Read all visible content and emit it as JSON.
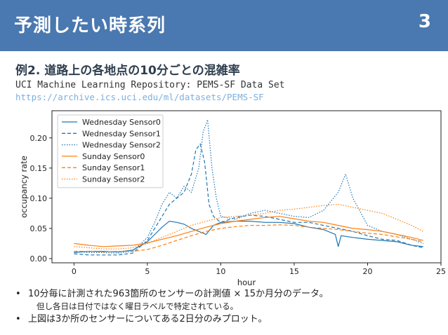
{
  "header": {
    "title": "予測したい時系列",
    "page_number": "3"
  },
  "example": {
    "title": "例2. 道路上の各地点の10分ごとの混雑率"
  },
  "source": {
    "text": "UCI Machine Learning Repository: PEMS-SF Data Set",
    "url": "https://archive.ics.uci.edu/ml/datasets/PEMS-SF"
  },
  "chart_data": {
    "type": "line",
    "xlabel": "hour",
    "ylabel": "occupancy rate",
    "xlim": [
      -1.5,
      25
    ],
    "ylim": [
      -0.007,
      0.245
    ],
    "xticks": [
      0,
      5,
      10,
      15,
      20,
      25
    ],
    "yticks": [
      0.0,
      0.05,
      0.1,
      0.15,
      0.2
    ],
    "xtick_labels": [
      "0",
      "5",
      "10",
      "15",
      "20",
      "25"
    ],
    "ytick_labels": [
      "0.00",
      "0.05",
      "0.10",
      "0.15",
      "0.20"
    ],
    "legend": "top-left",
    "series": [
      {
        "name": "Wednesday Sensor0",
        "color": "#1f77b4",
        "dash": "solid",
        "x": [
          0,
          1,
          2,
          3,
          4,
          5,
          5.5,
          6,
          6.5,
          7,
          7.5,
          8,
          8.5,
          9,
          9.5,
          10,
          11,
          12,
          13,
          14,
          15,
          16,
          17,
          17.8,
          18,
          18.2,
          19,
          20,
          21,
          22,
          23,
          23.8
        ],
        "y": [
          0.01,
          0.012,
          0.012,
          0.011,
          0.014,
          0.028,
          0.04,
          0.052,
          0.062,
          0.06,
          0.057,
          0.05,
          0.045,
          0.04,
          0.055,
          0.06,
          0.062,
          0.062,
          0.06,
          0.06,
          0.058,
          0.052,
          0.048,
          0.04,
          0.02,
          0.038,
          0.035,
          0.032,
          0.03,
          0.028,
          0.022,
          0.02
        ]
      },
      {
        "name": "Wednesday Sensor1",
        "color": "#1f77b4",
        "dash": "dashed",
        "x": [
          0,
          1,
          2,
          3,
          4,
          5,
          5.5,
          6,
          6.5,
          7,
          7.5,
          8,
          8.3,
          8.6,
          8.9,
          9.2,
          9.5,
          10,
          11,
          12,
          13,
          14,
          15,
          16,
          17,
          18,
          19,
          20,
          21,
          22,
          23,
          23.8
        ],
        "y": [
          0.008,
          0.006,
          0.006,
          0.006,
          0.009,
          0.03,
          0.05,
          0.07,
          0.09,
          0.1,
          0.11,
          0.14,
          0.18,
          0.19,
          0.16,
          0.09,
          0.07,
          0.06,
          0.068,
          0.072,
          0.07,
          0.065,
          0.06,
          0.06,
          0.055,
          0.05,
          0.045,
          0.038,
          0.032,
          0.03,
          0.022,
          0.018
        ]
      },
      {
        "name": "Wednesday Sensor2",
        "color": "#1f77b4",
        "dash": "dotted",
        "x": [
          0,
          1,
          2,
          3,
          4,
          5,
          5.5,
          6,
          6.5,
          7,
          7.5,
          8,
          8.5,
          8.8,
          9.1,
          9.4,
          9.7,
          10,
          11,
          12,
          13,
          14,
          15,
          16,
          17,
          18,
          18.5,
          19,
          20,
          21,
          22,
          23,
          23.8
        ],
        "y": [
          0.012,
          0.01,
          0.01,
          0.009,
          0.012,
          0.035,
          0.06,
          0.09,
          0.11,
          0.1,
          0.12,
          0.11,
          0.15,
          0.21,
          0.23,
          0.15,
          0.1,
          0.07,
          0.065,
          0.075,
          0.08,
          0.075,
          0.07,
          0.068,
          0.08,
          0.11,
          0.14,
          0.1,
          0.055,
          0.045,
          0.04,
          0.032,
          0.025
        ]
      },
      {
        "name": "Sunday Sensor0",
        "color": "#ff7f0e",
        "dash": "solid",
        "x": [
          0,
          1,
          2,
          3,
          4,
          5,
          6,
          7,
          8,
          9,
          10,
          11,
          12,
          13,
          14,
          15,
          16,
          17,
          18,
          19,
          20,
          21,
          22,
          23,
          23.8
        ],
        "y": [
          0.025,
          0.022,
          0.02,
          0.021,
          0.022,
          0.026,
          0.032,
          0.038,
          0.045,
          0.052,
          0.058,
          0.062,
          0.065,
          0.068,
          0.07,
          0.066,
          0.062,
          0.06,
          0.055,
          0.05,
          0.048,
          0.045,
          0.04,
          0.035,
          0.03
        ]
      },
      {
        "name": "Sunday Sensor1",
        "color": "#ff7f0e",
        "dash": "dashed",
        "x": [
          0,
          1,
          2,
          3,
          4,
          5,
          6,
          7,
          8,
          9,
          10,
          11,
          12,
          13,
          14,
          15,
          16,
          17,
          18,
          19,
          20,
          21,
          22,
          23,
          23.8
        ],
        "y": [
          0.012,
          0.012,
          0.011,
          0.012,
          0.012,
          0.015,
          0.022,
          0.03,
          0.038,
          0.045,
          0.05,
          0.053,
          0.055,
          0.055,
          0.056,
          0.055,
          0.052,
          0.05,
          0.048,
          0.045,
          0.042,
          0.04,
          0.036,
          0.032,
          0.028
        ]
      },
      {
        "name": "Sunday Sensor2",
        "color": "#ff7f0e",
        "dash": "dotted",
        "x": [
          0,
          1,
          2,
          3,
          4,
          5,
          6,
          7,
          8,
          9,
          10,
          11,
          12,
          13,
          14,
          15,
          16,
          17,
          18,
          19,
          20,
          21,
          22,
          23,
          23.8
        ],
        "y": [
          0.02,
          0.018,
          0.016,
          0.016,
          0.018,
          0.025,
          0.035,
          0.045,
          0.055,
          0.062,
          0.068,
          0.07,
          0.072,
          0.075,
          0.08,
          0.082,
          0.085,
          0.088,
          0.09,
          0.085,
          0.08,
          0.075,
          0.065,
          0.055,
          0.045
        ]
      }
    ]
  },
  "bullets": [
    {
      "text": "10分毎に計測された963箇所のセンサーの計測値 × 15か月分のデータ。"
    },
    {
      "text": "上図は3か所のセンサーについてある2日分のみプロット。"
    }
  ],
  "subnote": "但し各日は日付ではなく曜日ラベルで特定されている。"
}
